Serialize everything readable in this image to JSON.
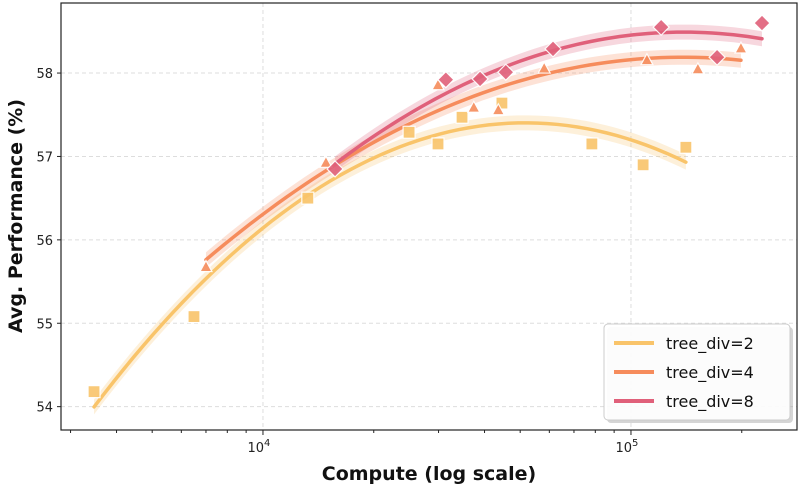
{
  "chart_data": {
    "type": "scatter",
    "title": "",
    "xlabel": "Compute (log scale)",
    "ylabel": "Avg. Performance (%)",
    "xscale": "log",
    "xlim": [
      2826,
      282600
    ],
    "ylim": [
      53.72,
      58.84
    ],
    "xticks": [
      {
        "value": 10000,
        "base": "10",
        "exp": "4"
      },
      {
        "value": 100000,
        "base": "10",
        "exp": "5"
      }
    ],
    "yticks": [
      54,
      55,
      56,
      57,
      58
    ],
    "grid": true,
    "legend_position": "bottom-right",
    "fit": "quadratic in log10(compute) with shaded confidence band",
    "series": [
      {
        "name": "tree_div=2",
        "color": "#F9C46A",
        "marker": "square",
        "x": [
          3475,
          6494,
          13240,
          24950,
          29900,
          34750,
          44600,
          78300,
          107900,
          141000
        ],
        "y": [
          54.18,
          55.08,
          56.5,
          57.29,
          57.15,
          57.47,
          57.64,
          57.15,
          56.9,
          57.11
        ]
      },
      {
        "name": "tree_div=4",
        "color": "#F68C5C",
        "marker": "triangle",
        "x": [
          7000,
          14830,
          29900,
          37400,
          43600,
          58100,
          110500,
          152000,
          199000
        ],
        "y": [
          55.68,
          56.93,
          57.86,
          57.59,
          57.56,
          58.06,
          58.16,
          58.05,
          58.3
        ]
      },
      {
        "name": "tree_div=8",
        "color": "#E0607A",
        "marker": "diamond",
        "x": [
          15700,
          31400,
          38900,
          45700,
          61400,
          120800,
          171400,
          227000
        ],
        "y": [
          56.85,
          57.92,
          57.93,
          58.01,
          58.29,
          58.55,
          58.19,
          58.6
        ]
      }
    ]
  }
}
